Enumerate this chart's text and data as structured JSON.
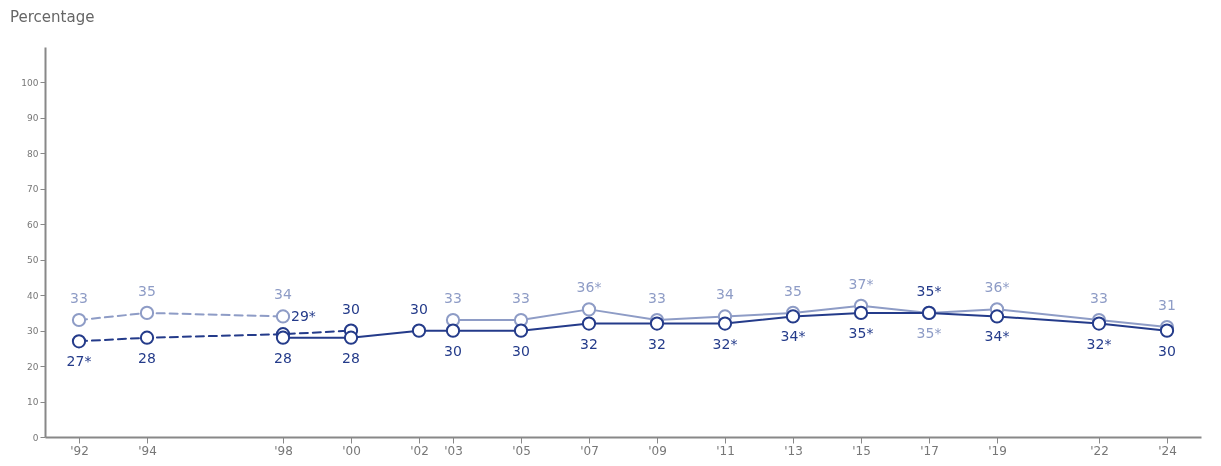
{
  "chart_data": {
    "type": "line",
    "ylabel": "Percentage",
    "xlim": [
      1991,
      2025
    ],
    "xticks": [
      {
        "value": 1992,
        "label": "'92"
      },
      {
        "value": 1994,
        "label": "'94"
      },
      {
        "value": 1998,
        "label": "'98"
      },
      {
        "value": 2000,
        "label": "'00"
      },
      {
        "value": 2002,
        "label": "'02"
      },
      {
        "value": 2003,
        "label": "'03"
      },
      {
        "value": 2005,
        "label": "'05"
      },
      {
        "value": 2007,
        "label": "'07"
      },
      {
        "value": 2009,
        "label": "'09"
      },
      {
        "value": 2011,
        "label": "'11"
      },
      {
        "value": 2013,
        "label": "'13"
      },
      {
        "value": 2015,
        "label": "'15"
      },
      {
        "value": 2017,
        "label": "'17"
      },
      {
        "value": 2019,
        "label": "'19"
      },
      {
        "value": 2022,
        "label": "'22"
      },
      {
        "value": 2024,
        "label": "'24"
      }
    ],
    "ylim": [
      0,
      110
    ],
    "yticks": [
      0,
      10,
      20,
      30,
      40,
      50,
      60,
      70,
      80,
      90,
      100
    ],
    "grid": false,
    "marker": "circle",
    "series": [
      {
        "color": "#8e9cc6",
        "line_style": "dashed",
        "x": [
          1992,
          1994,
          1998
        ],
        "values": [
          33,
          35,
          34
        ],
        "value_labels": [
          "33",
          "35",
          "34"
        ]
      },
      {
        "color": "#243b8a",
        "line_style": "dashed",
        "x": [
          1992,
          1994,
          1998,
          2000
        ],
        "values": [
          27,
          28,
          29,
          30
        ],
        "value_labels": [
          "27*",
          "28",
          "29*",
          "30"
        ]
      },
      {
        "color": "#8e9cc6",
        "line_style": "solid",
        "x": [
          2003,
          2005,
          2007,
          2009,
          2011,
          2013,
          2015,
          2017,
          2019,
          2022,
          2024
        ],
        "values": [
          33,
          33,
          36,
          33,
          34,
          35,
          37,
          35,
          36,
          33,
          31
        ],
        "value_labels": [
          "33",
          "33",
          "36*",
          "33",
          "34",
          "35",
          "37*",
          "35*",
          "36*",
          "33",
          "31"
        ]
      },
      {
        "color": "#243b8a",
        "line_style": "solid",
        "x": [
          1998,
          2000,
          2002,
          2003,
          2005,
          2007,
          2009,
          2011,
          2013,
          2015,
          2017,
          2019,
          2022,
          2024
        ],
        "values": [
          28,
          28,
          30,
          30,
          30,
          32,
          32,
          32,
          34,
          35,
          35,
          34,
          32,
          30
        ],
        "value_labels": [
          "28",
          "28",
          "30",
          "30",
          "30",
          "32",
          "32",
          "32*",
          "34*",
          "35*",
          "35*",
          "34*",
          "32*",
          "30"
        ]
      }
    ]
  }
}
